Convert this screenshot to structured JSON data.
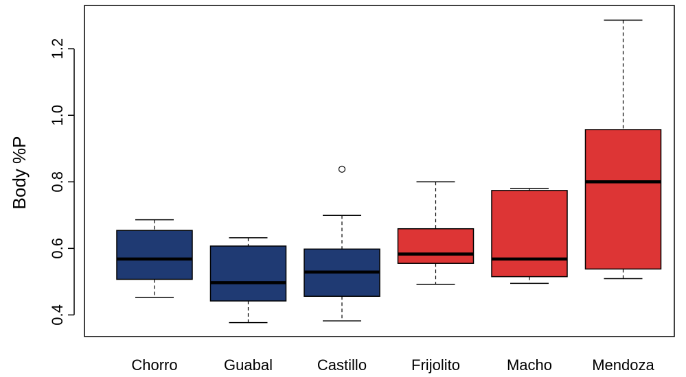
{
  "chart_data": {
    "type": "boxplot",
    "title": "",
    "xlabel": "",
    "ylabel": "Body %P",
    "ylim": [
      0.335,
      1.33
    ],
    "yticks": [
      0.4,
      0.6,
      0.8,
      1.0,
      1.2
    ],
    "ytick_labels": [
      "0.4",
      "0.6",
      "0.8",
      "1.0",
      "1.2"
    ],
    "grid": false,
    "legend": "none",
    "categories": [
      "Chorro",
      "Guabal",
      "Castillo",
      "Frijolito",
      "Macho",
      "Mendoza"
    ],
    "boxes": [
      {
        "label": "Chorro",
        "whisker_low": 0.453,
        "q1": 0.507,
        "median": 0.568,
        "q3": 0.654,
        "whisker_high": 0.686,
        "outliers": [],
        "color": "#1f3a73"
      },
      {
        "label": "Guabal",
        "whisker_low": 0.377,
        "q1": 0.442,
        "median": 0.497,
        "q3": 0.607,
        "whisker_high": 0.632,
        "outliers": [],
        "color": "#1f3a73"
      },
      {
        "label": "Castillo",
        "whisker_low": 0.382,
        "q1": 0.456,
        "median": 0.529,
        "q3": 0.598,
        "whisker_high": 0.699,
        "outliers": [
          0.838
        ],
        "color": "#1f3a73"
      },
      {
        "label": "Frijolito",
        "whisker_low": 0.492,
        "q1": 0.555,
        "median": 0.583,
        "q3": 0.659,
        "whisker_high": 0.8,
        "outliers": [],
        "color": "#dd3535"
      },
      {
        "label": "Macho",
        "whisker_low": 0.495,
        "q1": 0.515,
        "median": 0.568,
        "q3": 0.774,
        "whisker_high": 0.78,
        "outliers": [],
        "color": "#dd3535"
      },
      {
        "label": "Mendoza",
        "whisker_low": 0.509,
        "q1": 0.538,
        "median": 0.8,
        "q3": 0.957,
        "whisker_high": 1.286,
        "outliers": [],
        "color": "#dd3535"
      }
    ]
  }
}
